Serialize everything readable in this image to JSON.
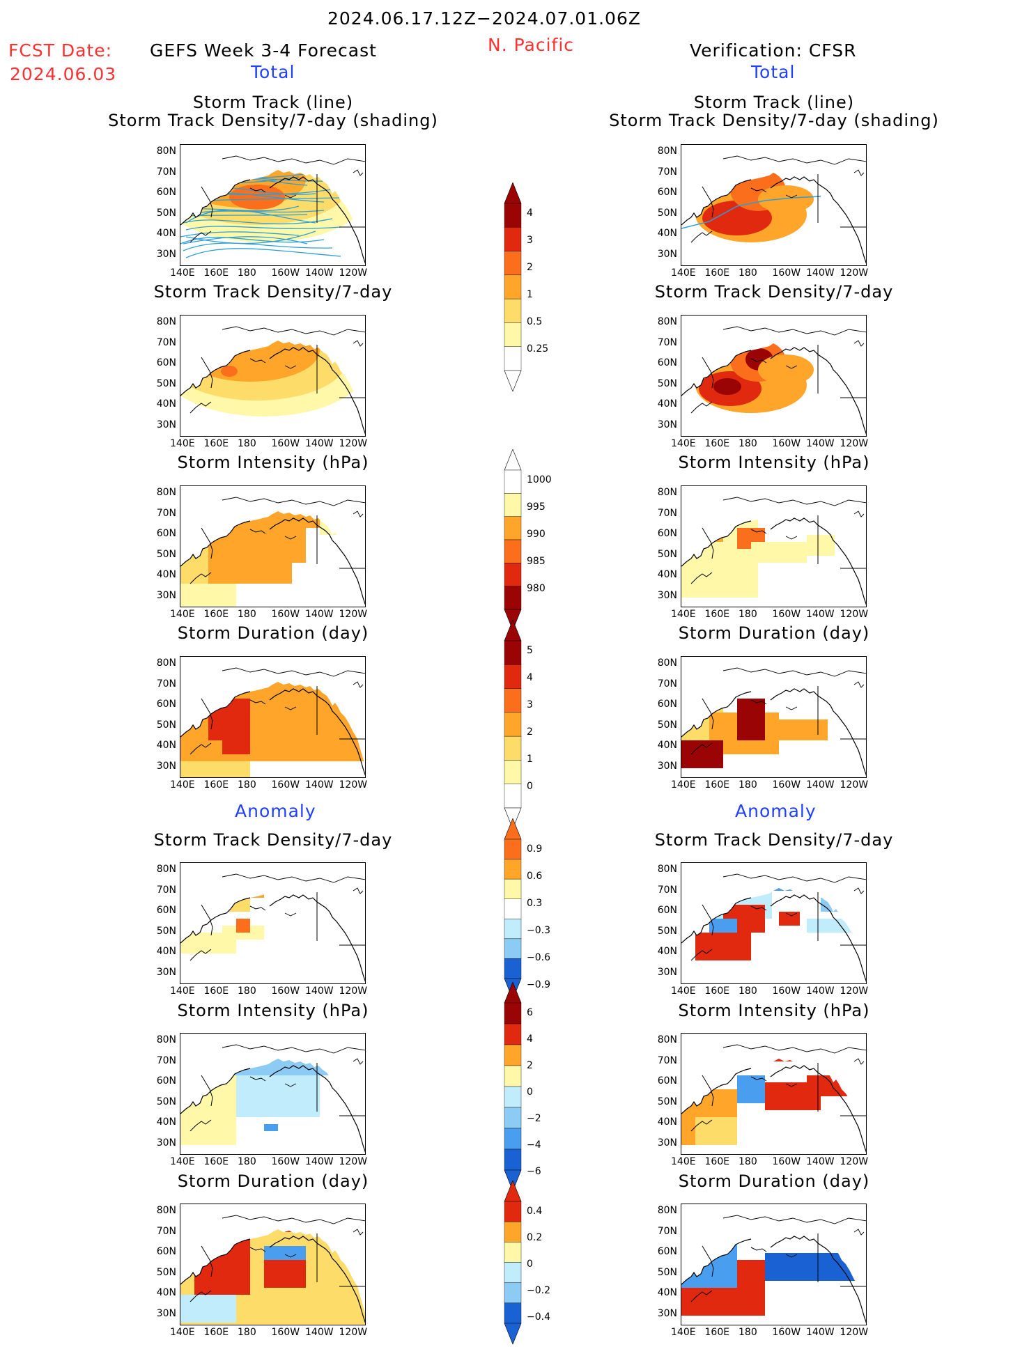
{
  "header": {
    "date_range": "2024.06.17.12Z−2024.07.01.06Z",
    "fcst_date_label": "FCST Date:",
    "fcst_date_value": "2024.06.03",
    "forecast_title": "GEFS Week 3-4 Forecast",
    "region": "N. Pacific",
    "verification_title": "Verification: CFSR"
  },
  "sections": {
    "total_label": "Total",
    "anomaly_label": "Anomaly"
  },
  "panel_titles": {
    "track_line": "Storm Track (line)",
    "track_shading": "Storm Track Density/7-day (shading)",
    "density": "Storm Track Density/7-day",
    "intensity": "Storm Intensity (hPa)",
    "duration": "Storm Duration (day)"
  },
  "axes": {
    "lat_ticks": [
      "80N",
      "70N",
      "60N",
      "50N",
      "40N",
      "30N"
    ],
    "lon_ticks": [
      "140E",
      "160E",
      "180",
      "160W",
      "140W",
      "120W"
    ]
  },
  "colorbars": {
    "density_total": [
      "4",
      "3",
      "2",
      "1",
      "0.5",
      "0.25"
    ],
    "intensity_total": [
      "1000",
      "995",
      "990",
      "985",
      "980"
    ],
    "duration_total": [
      "5",
      "4",
      "3",
      "2",
      "1",
      "0"
    ],
    "density_anom": [
      "0.9",
      "0.6",
      "0.3",
      "−0.3",
      "−0.6",
      "−0.9"
    ],
    "intensity_anom": [
      "6",
      "4",
      "2",
      "0",
      "−2",
      "−4",
      "−6"
    ],
    "duration_anom": [
      "0.4",
      "0.2",
      "0",
      "−0.2",
      "−0.4"
    ]
  },
  "colors": {
    "warm": [
      "#fff8a8",
      "#fedc6a",
      "#fea52a",
      "#fb6f1c",
      "#e0290f",
      "#9b0404"
    ],
    "cool": [
      "#c0ecfb",
      "#8cccf4",
      "#4a9ef0",
      "#1a62d4"
    ],
    "track_line": "#2b9fd8"
  }
}
